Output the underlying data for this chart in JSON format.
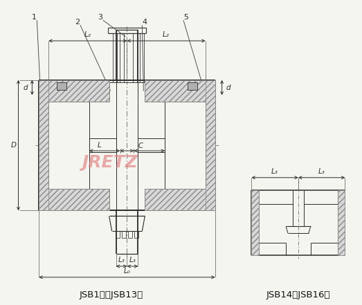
{
  "bg_color": "#f5f5f0",
  "line_color": "#2a2a2a",
  "watermark_text": "JRETZ",
  "watermark_color": "#e08080",
  "label_jsb1": "JSB1型～JSB13型",
  "label_jsb14": "JSB14～JSB16型",
  "dim_D": "D",
  "dim_d": "d",
  "dim_L2": "L₂",
  "dim_L": "L",
  "dim_C": "C",
  "dim_L3": "L₃",
  "dim_L0": "L₀",
  "part_nums": [
    "1",
    "2",
    "3",
    "4",
    "5"
  ],
  "hatch_color": "#888888",
  "hatch_bg": "#d8d8d8"
}
